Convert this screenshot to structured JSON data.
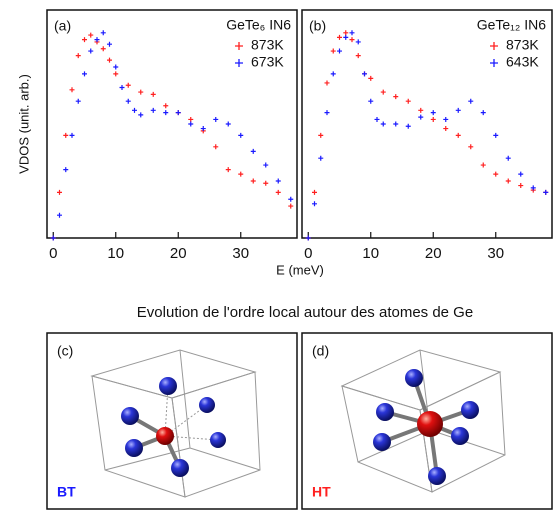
{
  "chart_data": [
    {
      "type": "scatter",
      "label": "(a)",
      "sample": "GeTe₆ IN6",
      "ylabel": "VDOS (unit. arb.)",
      "xlabel": "E (meV)",
      "xlim": [
        -1,
        39
      ],
      "xticks": [
        0,
        10,
        20,
        30
      ],
      "ylim": [
        0,
        1
      ],
      "series": [
        {
          "name": "873K",
          "color": "#ff2020",
          "x": [
            0,
            1,
            2,
            3,
            4,
            5,
            6,
            7,
            8,
            9,
            10,
            12,
            14,
            16,
            18,
            20,
            22,
            24,
            26,
            28,
            30,
            32,
            34,
            36,
            38
          ],
          "values": [
            0.0,
            0.2,
            0.45,
            0.65,
            0.8,
            0.87,
            0.89,
            0.86,
            0.83,
            0.78,
            0.72,
            0.67,
            0.64,
            0.63,
            0.58,
            0.55,
            0.52,
            0.47,
            0.4,
            0.3,
            0.28,
            0.25,
            0.24,
            0.2,
            0.14
          ]
        },
        {
          "name": "673K",
          "color": "#1a1aff",
          "x": [
            0,
            1,
            2,
            3,
            4,
            5,
            6,
            7,
            8,
            9,
            10,
            11,
            12,
            13,
            14,
            16,
            18,
            20,
            22,
            24,
            26,
            28,
            30,
            32,
            34,
            36,
            38
          ],
          "values": [
            0.0,
            0.1,
            0.3,
            0.45,
            0.6,
            0.72,
            0.82,
            0.87,
            0.9,
            0.85,
            0.75,
            0.66,
            0.6,
            0.56,
            0.54,
            0.56,
            0.55,
            0.55,
            0.5,
            0.48,
            0.52,
            0.5,
            0.45,
            0.38,
            0.32,
            0.25,
            0.17
          ]
        }
      ]
    },
    {
      "type": "scatter",
      "label": "(b)",
      "sample": "GeTe₁₂ IN6",
      "xlim": [
        -1,
        39
      ],
      "xticks": [
        0,
        10,
        20,
        30
      ],
      "ylim": [
        0,
        1
      ],
      "series": [
        {
          "name": "873K",
          "color": "#ff2020",
          "x": [
            0,
            1,
            2,
            3,
            4,
            5,
            6,
            7,
            8,
            9,
            10,
            12,
            14,
            16,
            18,
            20,
            22,
            24,
            26,
            28,
            30,
            32,
            34,
            36,
            38
          ],
          "values": [
            0.0,
            0.2,
            0.45,
            0.68,
            0.82,
            0.88,
            0.9,
            0.87,
            0.8,
            0.72,
            0.7,
            0.64,
            0.62,
            0.6,
            0.56,
            0.52,
            0.48,
            0.45,
            0.4,
            0.32,
            0.28,
            0.25,
            0.23,
            0.21,
            0.2
          ]
        },
        {
          "name": "643K",
          "color": "#1a1aff",
          "x": [
            0,
            1,
            2,
            3,
            4,
            5,
            6,
            7,
            8,
            9,
            10,
            11,
            12,
            14,
            16,
            18,
            20,
            22,
            24,
            26,
            28,
            30,
            32,
            34,
            36,
            38
          ],
          "values": [
            0.0,
            0.15,
            0.35,
            0.55,
            0.72,
            0.82,
            0.88,
            0.9,
            0.86,
            0.72,
            0.6,
            0.52,
            0.5,
            0.5,
            0.49,
            0.53,
            0.55,
            0.52,
            0.56,
            0.6,
            0.55,
            0.45,
            0.35,
            0.28,
            0.22,
            0.2
          ]
        }
      ]
    }
  ],
  "caption": "Evolution de l'ordre local autour des atomes de Ge",
  "panels": [
    {
      "label": "(c)",
      "phase": "BT"
    },
    {
      "label": "(d)",
      "phase": "HT"
    }
  ]
}
